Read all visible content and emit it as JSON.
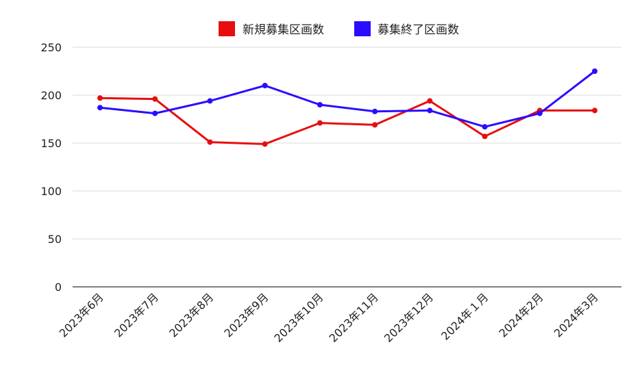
{
  "chart_data": {
    "type": "line",
    "title": "",
    "xlabel": "",
    "ylabel": "",
    "categories": [
      "2023年6月",
      "2023年7月",
      "2023年8月",
      "2023年9月",
      "2023年10月",
      "2023年11月",
      "2023年12月",
      "2024年１月",
      "2024年2月",
      "2024年3月"
    ],
    "ylim": [
      0,
      250
    ],
    "yticks": [
      0,
      50,
      100,
      150,
      200,
      250
    ],
    "grid": true,
    "legend_position": "top",
    "series": [
      {
        "name": "新規募集区画数",
        "color": "#e60e0e",
        "values": [
          197,
          196,
          151,
          149,
          171,
          169,
          194,
          157,
          184,
          184
        ]
      },
      {
        "name": "募集終了区画数",
        "color": "#2a0dff",
        "values": [
          187,
          181,
          194,
          210,
          190,
          183,
          184,
          167,
          181,
          225
        ]
      }
    ]
  }
}
